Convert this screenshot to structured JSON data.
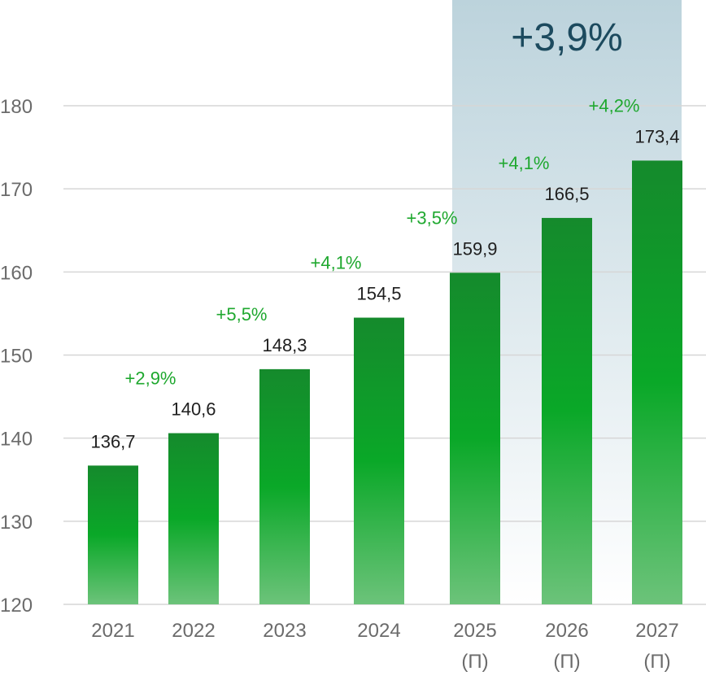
{
  "chart_data": {
    "type": "bar",
    "categories": [
      "2021",
      "2022",
      "2023",
      "2024",
      "2025",
      "2026",
      "2027"
    ],
    "category_notes": [
      "",
      "",
      "",
      "",
      "(П)",
      "(П)",
      "(П)"
    ],
    "values": [
      136.7,
      140.6,
      148.3,
      154.5,
      159.9,
      166.5,
      173.4
    ],
    "value_labels": [
      "136,7",
      "140,6",
      "148,3",
      "154,5",
      "159,9",
      "166,5",
      "173,4"
    ],
    "growth_labels": [
      "",
      "+2,9%",
      "+5,5%",
      "+4,1%",
      "+3,5%",
      "+4,1%",
      "+4,2%"
    ],
    "highlight": {
      "from_category": "2025",
      "to_category": "2027",
      "label": "+3,9%"
    },
    "title": "",
    "xlabel": "",
    "ylabel": "",
    "ylim": [
      120,
      180
    ],
    "yticks": [
      120,
      130,
      140,
      150,
      160,
      170,
      180
    ],
    "grid": true,
    "colors": {
      "bar_top": "#158a2c",
      "bar_mid": "#0aa828",
      "bar_bottom": "#6cc37a",
      "growth_text": "#1fa82f",
      "highlight_top": "#bcd3dc",
      "highlight_bottom": "#ffffff",
      "highlight_text": "#1c4a5e",
      "grid": "#d6d6d6"
    }
  }
}
